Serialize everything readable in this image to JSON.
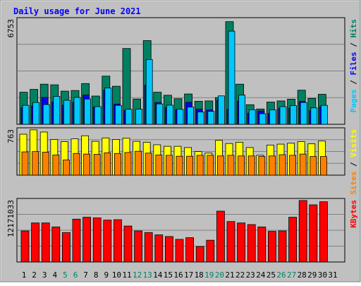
{
  "chart_data": {
    "title": "Daily usage for June 2021",
    "type": "bar",
    "categories": [
      "1",
      "2",
      "3",
      "4",
      "5",
      "6",
      "7",
      "8",
      "9",
      "10",
      "11",
      "12",
      "13",
      "14",
      "15",
      "16",
      "17",
      "18",
      "19",
      "20",
      "21",
      "22",
      "23",
      "24",
      "25",
      "26",
      "27",
      "28",
      "29",
      "30",
      "31"
    ],
    "weekend_days": [
      "5",
      "6",
      "12",
      "13",
      "19",
      "20",
      "26",
      "27"
    ],
    "panels": [
      {
        "id": "hits-files-pages",
        "ytick_label": "6753",
        "ymax": 6753,
        "right_labels": [
          {
            "text": "Pages",
            "color": "#00c8ff"
          },
          {
            "text": " / ",
            "color": "#000000"
          },
          {
            "text": "Files",
            "color": "#0000ff"
          },
          {
            "text": " / ",
            "color": "#000000"
          },
          {
            "text": "Hits",
            "color": "#008060"
          }
        ],
        "series": [
          {
            "name": "Hits",
            "color": "#008060",
            "values": [
              2030,
              2210,
              2540,
              2500,
              2100,
              2140,
              2580,
              1790,
              3050,
              2410,
              4800,
              1600,
              5300,
              2030,
              1840,
              1620,
              1920,
              1460,
              1480,
              1690,
              6500,
              2540,
              1240,
              970,
              1410,
              1480,
              1590,
              2160,
              1640,
              1900,
              null
            ]
          },
          {
            "name": "Files",
            "color": "#0000ff",
            "values": [
              1050,
              1160,
              1700,
              1410,
              1210,
              1390,
              1850,
              1090,
              2150,
              1280,
              880,
              null,
              2480,
              1380,
              1070,
              930,
              1390,
              970,
              910,
              1520,
              940,
              1460,
              700,
              850,
              680,
              1000,
              1020,
              1450,
              860,
              1120,
              null
            ]
          },
          {
            "name": "Pages",
            "color": "#00c8ff",
            "values": [
              1200,
              1380,
              1250,
              1770,
              1520,
              1700,
              1600,
              1120,
              2300,
              1200,
              950,
              960,
              4100,
              1290,
              1210,
              950,
              1090,
              780,
              820,
              1800,
              5900,
              1850,
              920,
              670,
              910,
              1120,
              1180,
              1380,
              1040,
              1200,
              null
            ]
          }
        ]
      },
      {
        "id": "visits-sites",
        "ytick_label": "763",
        "ymax": 763,
        "right_labels": [
          {
            "text": "Sites",
            "color": "#ff8000"
          },
          {
            "text": " / ",
            "color": "#000000"
          },
          {
            "text": "Visits",
            "color": "#ffff00"
          }
        ],
        "series": [
          {
            "name": "Visits",
            "color": "#ffff00",
            "values": [
              660,
              730,
              695,
              575,
              540,
              585,
              635,
              545,
              600,
              575,
              595,
              545,
              530,
              490,
              465,
              465,
              445,
              380,
              355,
              560,
              510,
              530,
              445,
              320,
              485,
              500,
              515,
              540,
              505,
              550,
              null
            ]
          },
          {
            "name": "Sites",
            "color": "#ff8000",
            "values": [
              375,
              380,
              370,
              325,
              245,
              350,
              340,
              335,
              360,
              350,
              365,
              385,
              355,
              325,
              320,
              305,
              305,
              320,
              320,
              310,
              320,
              310,
              310,
              300,
              310,
              330,
              320,
              340,
              300,
              300,
              null
            ]
          }
        ]
      },
      {
        "id": "kbytes",
        "ytick_label": "12171033",
        "ymax": 12171033,
        "right_labels": [
          {
            "text": "KBytes",
            "color": "#ff0000"
          }
        ],
        "series": [
          {
            "name": "KBytes",
            "color": "#ff0000",
            "values": [
              5950000,
              7480000,
              7480000,
              6720000,
              5640000,
              8210000,
              8570000,
              8440000,
              8020000,
              8100000,
              6890000,
              5950000,
              5640000,
              5200000,
              4880000,
              4330000,
              4660000,
              2950000,
              4170000,
              9740000,
              7750000,
              7480000,
              7170000,
              6720000,
              5870000,
              5950000,
              8570000,
              11780000,
              10950000,
              11540000,
              null
            ]
          }
        ]
      }
    ]
  }
}
